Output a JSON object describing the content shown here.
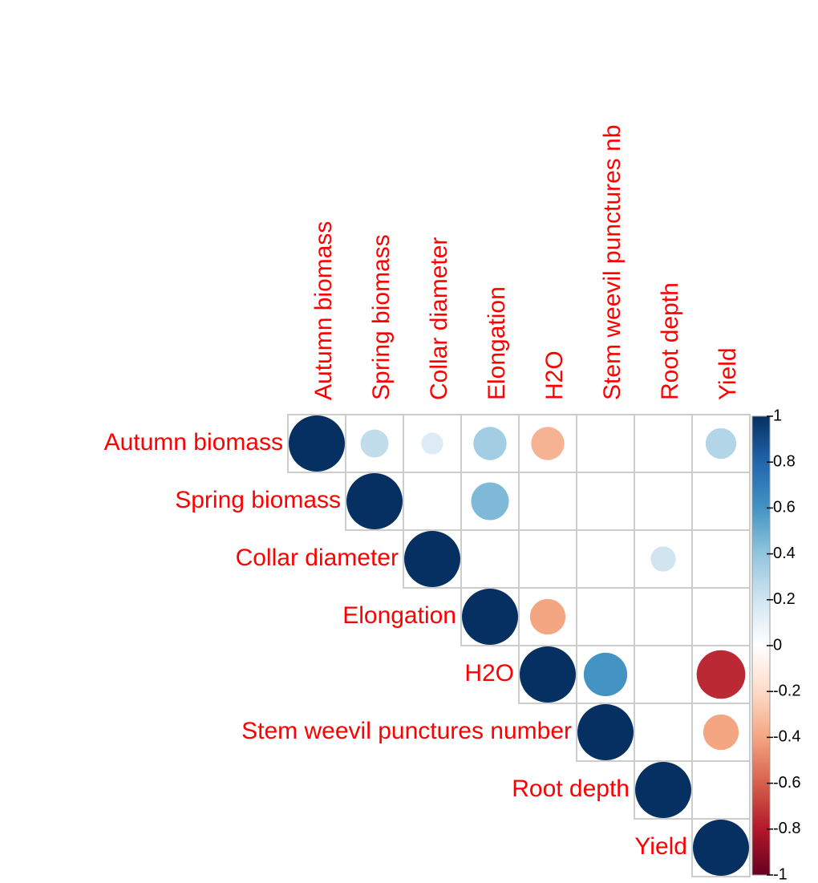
{
  "chart_data": {
    "type": "corrplot",
    "rows": [
      "Autumn biomass",
      "Spring biomass",
      "Collar diameter",
      "Elongation",
      "H2O",
      "Stem weevil punctures number",
      "Root depth",
      "Yield"
    ],
    "columns": [
      "Autumn biomass",
      "Spring biomass",
      "Collar diameter",
      "Elongation",
      "H2O",
      "Stem weevil punctures nb",
      "Root depth",
      "Yield"
    ],
    "values": [
      [
        1,
        0.25,
        0.15,
        0.35,
        -0.35,
        null,
        null,
        0.3
      ],
      [
        null,
        1,
        null,
        0.45,
        null,
        null,
        null,
        null
      ],
      [
        null,
        null,
        1,
        null,
        null,
        null,
        0.2,
        null
      ],
      [
        null,
        null,
        null,
        1,
        -0.4,
        null,
        null,
        null
      ],
      [
        null,
        null,
        null,
        null,
        1,
        0.6,
        null,
        -0.75
      ],
      [
        null,
        null,
        null,
        null,
        null,
        1,
        null,
        -0.4
      ],
      [
        null,
        null,
        null,
        null,
        null,
        null,
        1,
        null
      ],
      [
        null,
        null,
        null,
        null,
        null,
        null,
        null,
        1
      ]
    ],
    "colorscale": [
      "#67001F",
      "#B2182B",
      "#D6604D",
      "#F4A582",
      "#FDDBC7",
      "#FFFFFF",
      "#D1E5F0",
      "#92C5DE",
      "#4393C3",
      "#2166AC",
      "#053061"
    ],
    "clim": [
      -1,
      1
    ],
    "cticks": [
      -1,
      -0.8,
      -0.6,
      -0.4,
      -0.2,
      0,
      0.2,
      0.4,
      0.6,
      0.8,
      1
    ]
  }
}
